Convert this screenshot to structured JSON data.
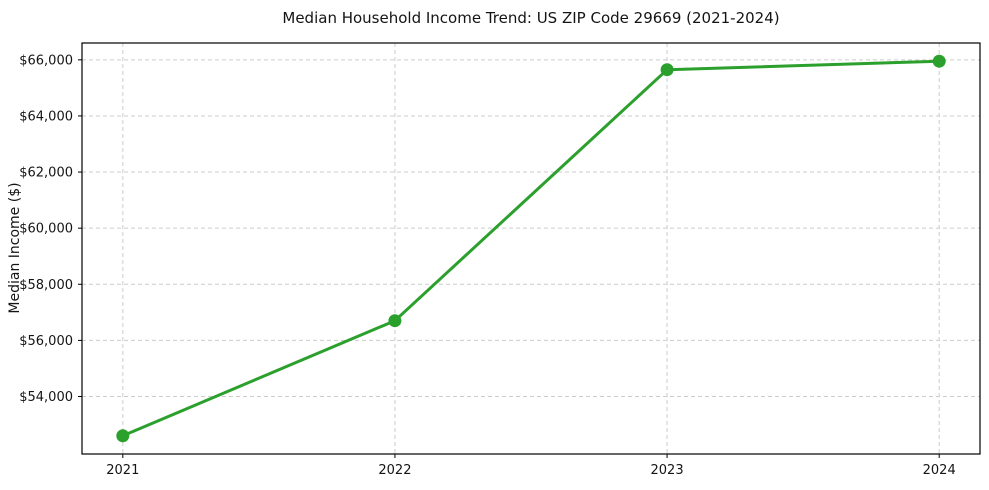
{
  "chart_data": {
    "type": "line",
    "title": "Median Household Income Trend: US ZIP Code 29669 (2021-2024)",
    "xlabel": "",
    "ylabel": "Median Income ($)",
    "categories": [
      2021,
      2022,
      2023,
      2024
    ],
    "x_tick_labels": [
      "2021",
      "2022",
      "2023",
      "2024"
    ],
    "series": [
      {
        "name": "Median Household Income",
        "values": [
          52600,
          56700,
          65650,
          65950
        ]
      }
    ],
    "yticks": [
      54000,
      56000,
      58000,
      60000,
      62000,
      64000,
      66000
    ],
    "y_tick_labels": [
      "$54,000",
      "$56,000",
      "$58,000",
      "$60,000",
      "$62,000",
      "$64,000",
      "$66,000"
    ],
    "xlim": [
      2020.85,
      2024.15
    ],
    "ylim": [
      51950,
      66600
    ],
    "grid": true,
    "grid_style": "dashed",
    "legend": "none",
    "colors": {
      "line": "#2ca02c",
      "marker": "#2ca02c",
      "grid": "#cccccc",
      "spine": "#000000",
      "text": "#141414",
      "background": "#ffffff"
    }
  }
}
